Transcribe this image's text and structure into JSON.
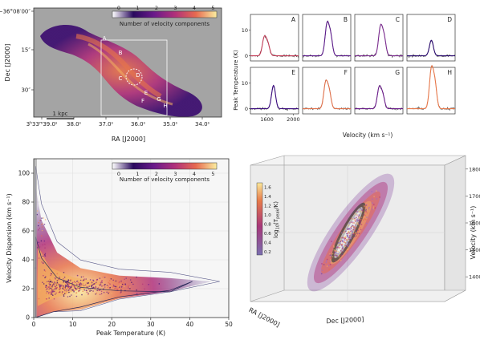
{
  "chart_data": [
    {
      "type": "heatmap",
      "panel": "map",
      "xlabel": "RA [J2000]",
      "ylabel": "Dec [J2000]",
      "x_ticks": [
        "3h33m39.0s",
        "38.0s",
        "37.0s",
        "36.0s",
        "35.0s",
        "34.0s"
      ],
      "x_tick_main": "39.0",
      "x_tick_prefix": "3h33m",
      "y_ticks": [
        "-36°08′00″",
        "15″",
        "30″"
      ],
      "y_ticks_display": [
        "−36°08′00″",
        "15″",
        "30″"
      ],
      "colorbar": {
        "label": "Number of velocity components",
        "ticks": [
          "0",
          "1",
          "2",
          "3",
          "4",
          "5"
        ],
        "colors": [
          "#ffffff",
          "#2a0a5e",
          "#6a1a8a",
          "#b0307a",
          "#e76a50",
          "#f3b060",
          "#fbeea0"
        ]
      },
      "region_labels": [
        "A",
        "B",
        "C",
        "D",
        "E",
        "F",
        "G",
        "H"
      ],
      "scalebar": "1 kpc"
    },
    {
      "type": "line",
      "panel": "spectra",
      "xlabel": "Velocity (km s⁻¹)",
      "ylabel": "Peak Temperature (K)",
      "x_ticks": [
        1600,
        2000
      ],
      "y_ticks": [
        0,
        10
      ],
      "panels": [
        {
          "label": "A",
          "peak_v": 1560,
          "peak_T": 7,
          "components": 2,
          "color": "#c23a55"
        },
        {
          "label": "B",
          "peak_v": 1720,
          "peak_T": 12,
          "components": 2,
          "color": "#5b1a8a"
        },
        {
          "label": "C",
          "peak_v": 1740,
          "peak_T": 11,
          "components": 2,
          "color": "#7a2a8e"
        },
        {
          "label": "D",
          "peak_v": 1720,
          "peak_T": 6,
          "components": 1,
          "color": "#2a0a6e"
        },
        {
          "label": "E",
          "peak_v": 1700,
          "peak_T": 9,
          "components": 1,
          "color": "#3a0a7e"
        },
        {
          "label": "F",
          "peak_v": 1700,
          "peak_T": 10,
          "components": 4,
          "color": "#e0704a"
        },
        {
          "label": "G",
          "peak_v": 1720,
          "peak_T": 8,
          "components": 2,
          "color": "#6a1a8a"
        },
        {
          "label": "H",
          "peak_v": 1720,
          "peak_T": 15,
          "components": 4,
          "color": "#e8784a"
        }
      ]
    },
    {
      "type": "scatter",
      "panel": "dispersion",
      "xlabel": "Peak Temperature (K)",
      "ylabel": "Velocity Dispersion (km s⁻¹)",
      "xlim": [
        0,
        50
      ],
      "ylim": [
        0,
        110
      ],
      "x_ticks": [
        0,
        10,
        20,
        30,
        40,
        50
      ],
      "y_ticks": [
        0,
        20,
        40,
        60,
        80,
        100
      ],
      "colorbar": {
        "label": "Number of velocity components",
        "ticks": [
          "0",
          "1",
          "2",
          "3",
          "4",
          "5"
        ]
      }
    },
    {
      "type": "scatter",
      "panel": "ppv-3d",
      "xlabel": "Dec [J2000]",
      "ylabel": "RA [J2000]",
      "zlabel": "Velocity (km s⁻¹)",
      "z_ticks": [
        1400,
        1500,
        1600,
        1700,
        1800
      ],
      "colorbar": {
        "label": "log₁₀(T_peak/K)",
        "ticks": [
          "0.2",
          "0.4",
          "0.6",
          "0.8",
          "1.0",
          "1.2",
          "1.4",
          "1.6"
        ]
      }
    }
  ]
}
